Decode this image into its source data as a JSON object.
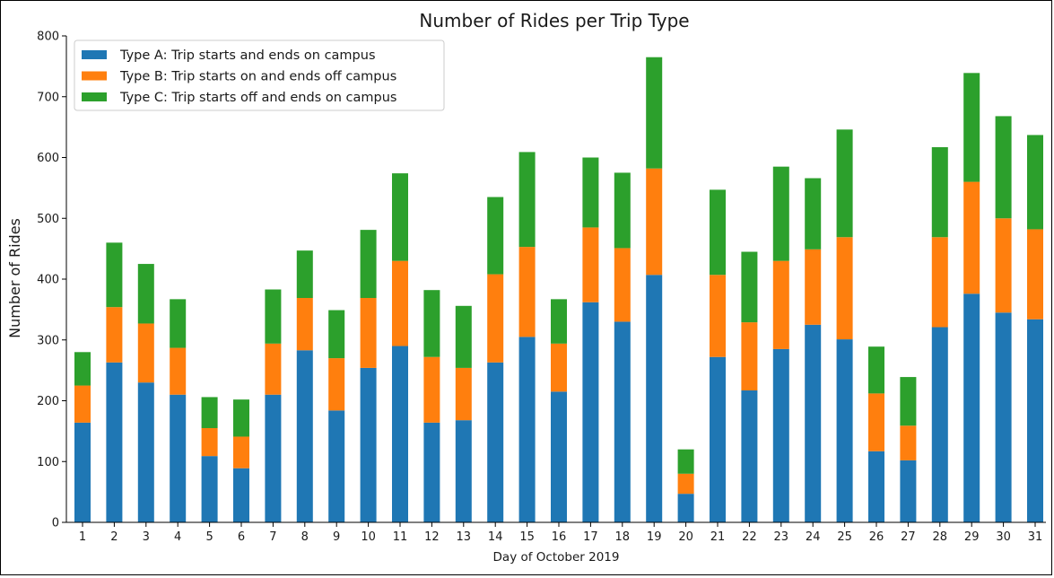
{
  "chart_data": {
    "type": "bar",
    "stacked": true,
    "title": "Number of Rides per Trip Type",
    "xlabel": "Day of October 2019",
    "ylabel": "Number of Rides",
    "ylim": [
      0,
      800
    ],
    "yticks": [
      "0",
      "100",
      "200",
      "300",
      "400",
      "500",
      "600",
      "700",
      "800"
    ],
    "grid": false,
    "legend_position": "upper-left",
    "categories": [
      "1",
      "2",
      "3",
      "4",
      "5",
      "6",
      "7",
      "8",
      "9",
      "10",
      "11",
      "12",
      "13",
      "14",
      "15",
      "16",
      "17",
      "18",
      "19",
      "20",
      "21",
      "22",
      "23",
      "24",
      "25",
      "26",
      "27",
      "28",
      "29",
      "30",
      "31"
    ],
    "series": [
      {
        "name": "Type A: Trip starts and ends on campus",
        "color": "#1f77b4",
        "values": [
          164,
          263,
          230,
          210,
          109,
          89,
          210,
          283,
          184,
          254,
          290,
          164,
          168,
          263,
          305,
          215,
          362,
          330,
          407,
          47,
          272,
          217,
          285,
          325,
          301,
          117,
          102,
          321,
          376,
          345,
          334
        ]
      },
      {
        "name": "Type B: Trip starts on and ends off campus",
        "color": "#ff7f0e",
        "values": [
          61,
          91,
          97,
          77,
          46,
          52,
          84,
          86,
          86,
          115,
          140,
          108,
          86,
          145,
          148,
          79,
          123,
          121,
          175,
          33,
          135,
          112,
          145,
          124,
          168,
          95,
          57,
          148,
          184,
          155,
          148
        ]
      },
      {
        "name": "Type C: Trip starts off and ends on campus",
        "color": "#2ca02c",
        "values": [
          55,
          106,
          98,
          80,
          51,
          61,
          89,
          78,
          79,
          112,
          144,
          110,
          102,
          127,
          156,
          73,
          115,
          124,
          183,
          40,
          140,
          116,
          155,
          117,
          177,
          77,
          80,
          148,
          179,
          168,
          155
        ]
      }
    ]
  }
}
